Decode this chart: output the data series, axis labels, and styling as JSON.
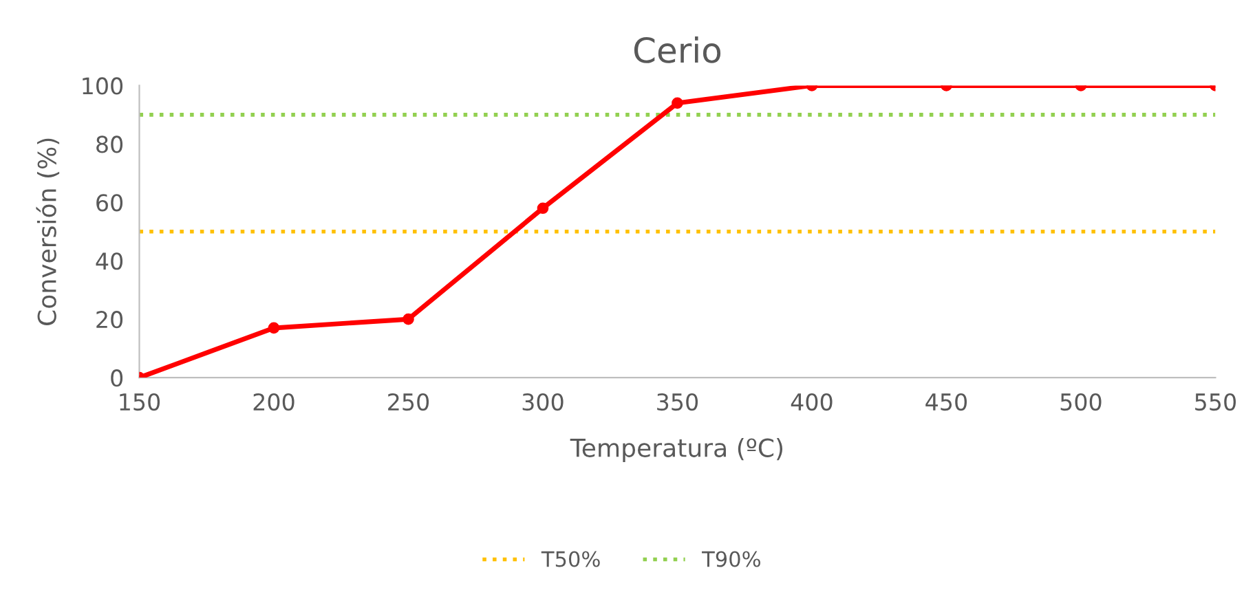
{
  "chart_data": {
    "type": "line",
    "title": "Cerio",
    "xlabel": "Temperatura (ºC)",
    "ylabel": "Conversión (%)",
    "x": [
      150,
      200,
      250,
      300,
      350,
      400,
      450,
      500,
      550
    ],
    "series": [
      {
        "color": "#ff0000",
        "values": [
          0,
          17,
          20,
          58,
          94,
          100,
          100,
          100,
          100
        ]
      }
    ],
    "xlim": [
      150,
      550
    ],
    "xticks": [
      150,
      200,
      250,
      300,
      350,
      400,
      450,
      500,
      550
    ],
    "ylim": [
      0,
      100
    ],
    "yticks": [
      0,
      20,
      40,
      60,
      80,
      100
    ],
    "ref_lines": [
      {
        "axis": "y",
        "value": 50,
        "label": "T50%",
        "color": "#ffc000",
        "line_style": "dotted"
      },
      {
        "axis": "y",
        "value": 90,
        "label": "T90%",
        "color": "#92d050",
        "line_style": "dotted"
      }
    ],
    "marker": "circle",
    "grid": false,
    "legend": "bottom"
  }
}
